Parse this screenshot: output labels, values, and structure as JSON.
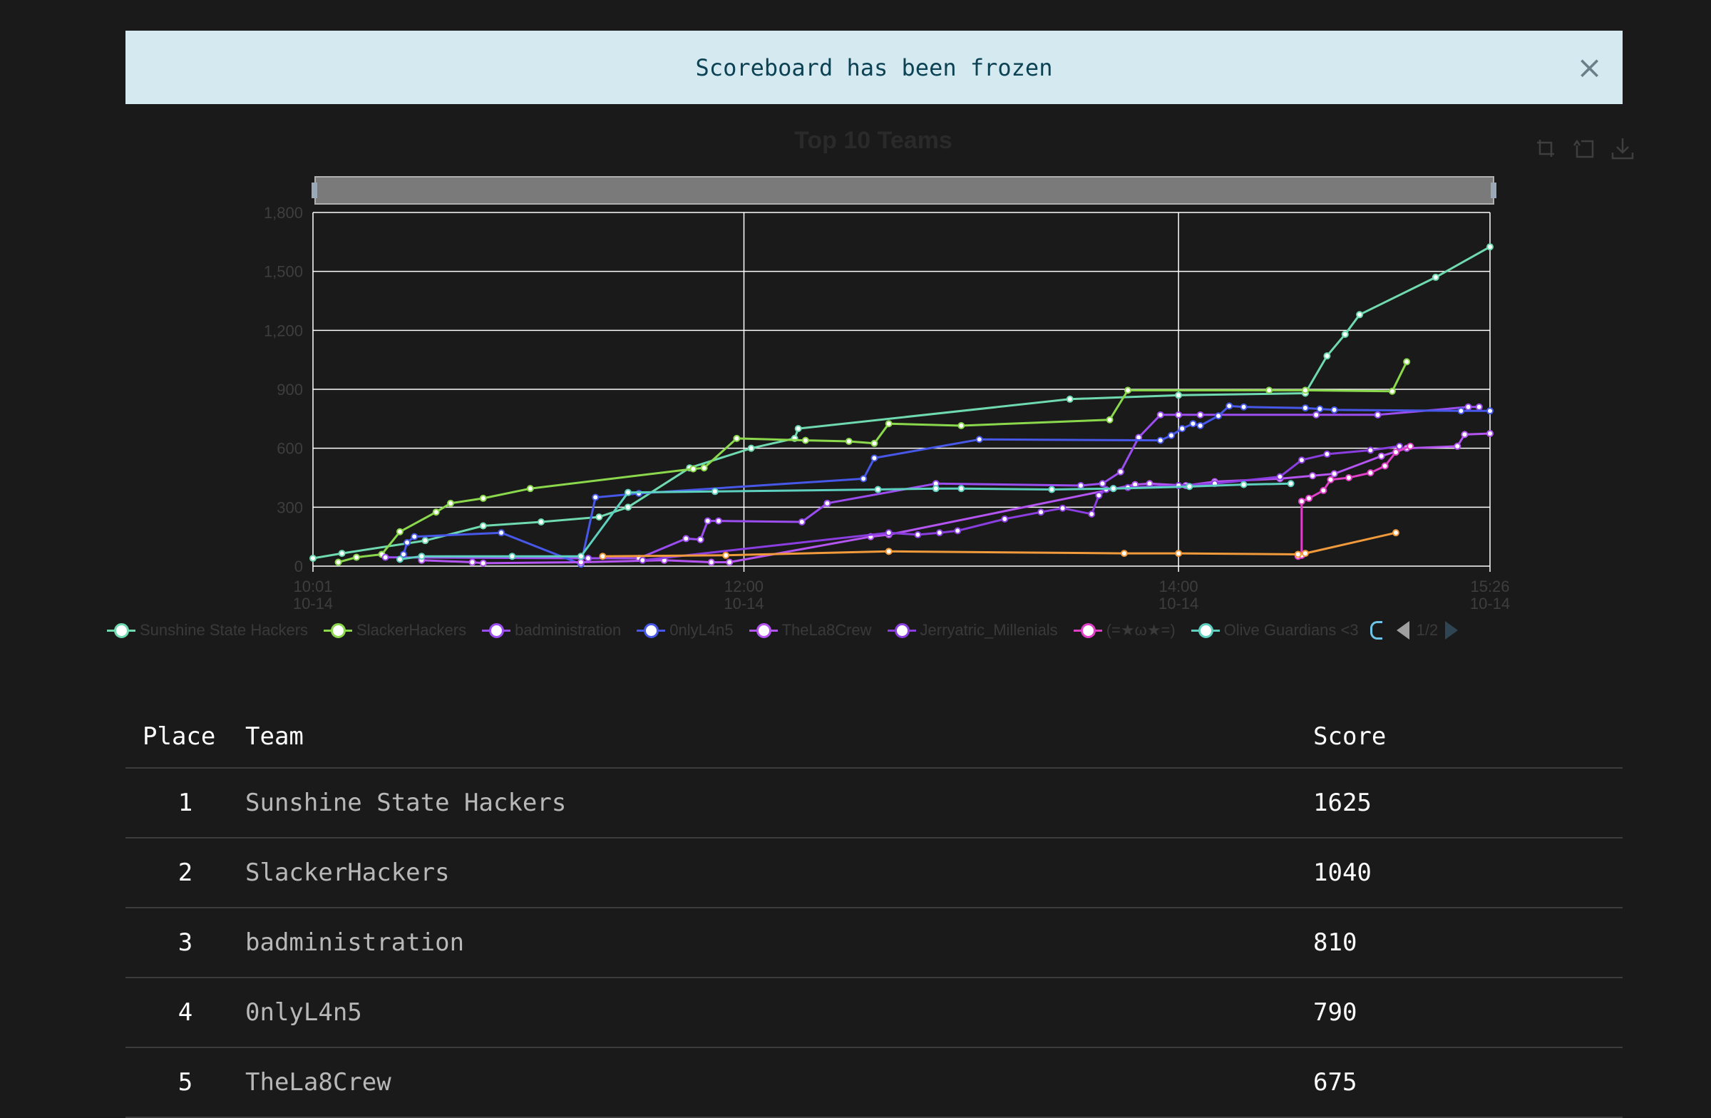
{
  "alert": {
    "message": "Scoreboard has been frozen",
    "close_glyph": "×"
  },
  "toolbox": [
    "zoom-icon",
    "zoom-reset-icon",
    "save-image-icon"
  ],
  "chart_data": {
    "type": "line",
    "title": "Top 10 Teams",
    "ylim": [
      0,
      1800
    ],
    "y_ticks": [
      "0",
      "300",
      "600",
      "900",
      "1,200",
      "1,500",
      "1,800"
    ],
    "x_ticks": [
      {
        "time": "10:01",
        "date": "10-14"
      },
      {
        "time": "12:00",
        "date": "10-14"
      },
      {
        "time": "14:00",
        "date": "10-14"
      },
      {
        "time": "15:26",
        "date": "10-14"
      }
    ],
    "x_range": [
      "10-14 10:01",
      "10-14 15:26"
    ],
    "grid": true,
    "legend_position": "bottom",
    "legend_page": "1/2",
    "series": [
      {
        "name": "Sunshine State Hackers",
        "color": "#6fdab0",
        "points": [
          [
            "10:01",
            40
          ],
          [
            "10:09",
            65
          ],
          [
            "10:32",
            130
          ],
          [
            "10:48",
            205
          ],
          [
            "11:04",
            225
          ],
          [
            "11:20",
            250
          ],
          [
            "11:28",
            300
          ],
          [
            "11:45",
            500
          ],
          [
            "12:02",
            600
          ],
          [
            "12:14",
            650
          ],
          [
            "12:15",
            700
          ],
          [
            "13:30",
            850
          ],
          [
            "14:00",
            870
          ],
          [
            "14:35",
            880
          ],
          [
            "14:41",
            1070
          ],
          [
            "14:46",
            1180
          ],
          [
            "14:50",
            1280
          ],
          [
            "15:11",
            1470
          ],
          [
            "15:26",
            1625
          ]
        ]
      },
      {
        "name": "SlackerHackers",
        "color": "#8bd84c",
        "points": [
          [
            "10:08",
            20
          ],
          [
            "10:13",
            45
          ],
          [
            "10:20",
            60
          ],
          [
            "10:25",
            175
          ],
          [
            "10:35",
            275
          ],
          [
            "10:39",
            320
          ],
          [
            "10:48",
            345
          ],
          [
            "11:01",
            395
          ],
          [
            "11:46",
            495
          ],
          [
            "11:49",
            500
          ],
          [
            "11:58",
            650
          ],
          [
            "12:17",
            640
          ],
          [
            "12:29",
            635
          ],
          [
            "12:36",
            625
          ],
          [
            "12:40",
            725
          ],
          [
            "13:00",
            715
          ],
          [
            "13:41",
            745
          ],
          [
            "13:46",
            895
          ],
          [
            "14:25",
            895
          ],
          [
            "14:35",
            895
          ],
          [
            "14:59",
            890
          ],
          [
            "15:03",
            1040
          ]
        ]
      },
      {
        "name": "badministration",
        "color": "#9b4df0",
        "points": [
          [
            "10:21",
            45
          ],
          [
            "11:17",
            40
          ],
          [
            "11:31",
            40
          ],
          [
            "11:44",
            140
          ],
          [
            "11:48",
            135
          ],
          [
            "11:50",
            230
          ],
          [
            "11:53",
            230
          ],
          [
            "12:16",
            225
          ],
          [
            "12:23",
            320
          ],
          [
            "12:53",
            420
          ],
          [
            "13:33",
            410
          ],
          [
            "13:39",
            420
          ],
          [
            "13:44",
            480
          ],
          [
            "13:49",
            655
          ],
          [
            "13:55",
            770
          ],
          [
            "14:00",
            770
          ],
          [
            "14:06",
            770
          ],
          [
            "14:38",
            770
          ],
          [
            "14:55",
            770
          ],
          [
            "15:20",
            810
          ],
          [
            "15:23",
            810
          ]
        ]
      },
      {
        "name": "0nlyL4n5",
        "color": "#4758e8",
        "points": [
          [
            "10:26",
            60
          ],
          [
            "10:27",
            120
          ],
          [
            "10:29",
            150
          ],
          [
            "10:53",
            170
          ],
          [
            "11:15",
            10
          ],
          [
            "11:19",
            350
          ],
          [
            "11:31",
            370
          ],
          [
            "12:33",
            445
          ],
          [
            "12:36",
            550
          ],
          [
            "13:05",
            645
          ],
          [
            "13:55",
            640
          ],
          [
            "13:58",
            665
          ],
          [
            "14:01",
            700
          ],
          [
            "14:04",
            725
          ],
          [
            "14:06",
            715
          ],
          [
            "14:11",
            765
          ],
          [
            "14:14",
            815
          ],
          [
            "14:18",
            810
          ],
          [
            "14:35",
            805
          ],
          [
            "14:39",
            800
          ],
          [
            "14:43",
            795
          ],
          [
            "15:18",
            790
          ],
          [
            "15:26",
            790
          ]
        ]
      },
      {
        "name": "TheLa8Crew",
        "color": "#b455f2",
        "points": [
          [
            "10:31",
            30
          ],
          [
            "10:45",
            20
          ],
          [
            "10:48",
            15
          ],
          [
            "11:15",
            20
          ],
          [
            "11:38",
            30
          ],
          [
            "11:51",
            20
          ],
          [
            "11:56",
            20
          ],
          [
            "12:35",
            150
          ],
          [
            "12:40",
            160
          ],
          [
            "13:48",
            415
          ],
          [
            "13:52",
            420
          ],
          [
            "14:02",
            410
          ],
          [
            "14:10",
            430
          ],
          [
            "14:28",
            445
          ],
          [
            "14:37",
            460
          ],
          [
            "14:43",
            470
          ],
          [
            "14:56",
            560
          ],
          [
            "15:03",
            600
          ],
          [
            "15:17",
            610
          ],
          [
            "15:19",
            670
          ],
          [
            "15:26",
            675
          ]
        ]
      },
      {
        "name": "Jerryatric_Millenials",
        "color": "#8a3ee0",
        "points": [
          [
            "11:32",
            30
          ],
          [
            "12:40",
            170
          ],
          [
            "12:48",
            160
          ],
          [
            "12:54",
            170
          ],
          [
            "12:59",
            180
          ],
          [
            "13:12",
            240
          ],
          [
            "13:22",
            275
          ],
          [
            "13:28",
            295
          ],
          [
            "13:36",
            265
          ],
          [
            "13:38",
            360
          ],
          [
            "13:40",
            390
          ],
          [
            "13:42",
            395
          ],
          [
            "13:46",
            400
          ],
          [
            "14:00",
            410
          ],
          [
            "14:10",
            420
          ],
          [
            "14:28",
            455
          ],
          [
            "14:34",
            540
          ],
          [
            "14:41",
            570
          ],
          [
            "14:53",
            590
          ],
          [
            "15:01",
            610
          ]
        ]
      },
      {
        "name": "(=★ω★=)",
        "color": "#e040c8",
        "points": [
          [
            "14:33",
            50
          ],
          [
            "14:34",
            55
          ],
          [
            "14:34",
            330
          ],
          [
            "14:36",
            345
          ],
          [
            "14:40",
            385
          ],
          [
            "14:42",
            440
          ],
          [
            "14:47",
            450
          ],
          [
            "14:53",
            475
          ],
          [
            "14:57",
            510
          ],
          [
            "15:00",
            580
          ],
          [
            "15:04",
            610
          ]
        ]
      },
      {
        "name": "Olive Guardians <3",
        "color": "#5ed0c0",
        "points": [
          [
            "10:25",
            35
          ],
          [
            "10:31",
            50
          ],
          [
            "10:56",
            50
          ],
          [
            "11:15",
            50
          ],
          [
            "11:28",
            375
          ],
          [
            "11:52",
            380
          ],
          [
            "12:37",
            390
          ],
          [
            "12:53",
            395
          ],
          [
            "13:00",
            395
          ],
          [
            "13:25",
            390
          ],
          [
            "13:42",
            395
          ],
          [
            "14:03",
            405
          ],
          [
            "14:18",
            415
          ],
          [
            "14:31",
            420
          ]
        ]
      },
      {
        "name": "",
        "color": "#f09a3c",
        "points": [
          [
            "11:21",
            50
          ],
          [
            "11:55",
            55
          ],
          [
            "12:40",
            75
          ],
          [
            "13:45",
            65
          ],
          [
            "14:00",
            65
          ],
          [
            "14:33",
            60
          ],
          [
            "14:35",
            65
          ],
          [
            "15:00",
            170
          ]
        ]
      }
    ]
  },
  "table": {
    "headers": {
      "place": "Place",
      "team": "Team",
      "score": "Score"
    },
    "rows": [
      {
        "place": "1",
        "team": "Sunshine State Hackers",
        "score": "1625"
      },
      {
        "place": "2",
        "team": "SlackerHackers",
        "score": "1040"
      },
      {
        "place": "3",
        "team": "badministration",
        "score": "810"
      },
      {
        "place": "4",
        "team": "0nlyL4n5",
        "score": "790"
      },
      {
        "place": "5",
        "team": "TheLa8Crew",
        "score": "675"
      }
    ]
  }
}
